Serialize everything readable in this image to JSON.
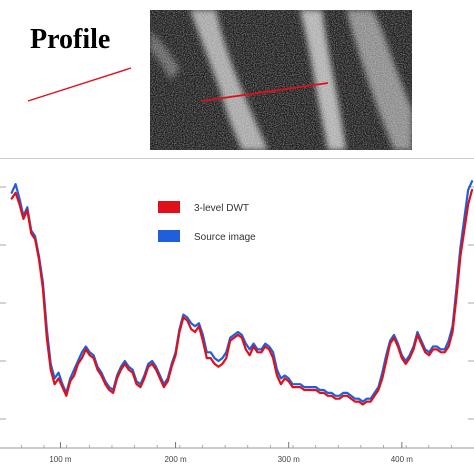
{
  "figure": {
    "title": "Profile",
    "image_panel": "source-image-with-profile-line"
  },
  "chart_data": {
    "type": "line",
    "x_unit": "m",
    "xlim": [
      -12,
      474
    ],
    "ylim": [
      0,
      100
    ],
    "x_ticks": [
      {
        "value": 50,
        "label": "100 m"
      },
      {
        "value": 168,
        "label": "200 m"
      },
      {
        "value": 284,
        "label": "300 m"
      },
      {
        "value": 400,
        "label": "400 m"
      }
    ],
    "legend_position": "top-center",
    "grid": "horizontal-tick-marks",
    "series": [
      {
        "name": "3-level DWT",
        "color": "#e0101a",
        "x": [
          0,
          4,
          8,
          12,
          16,
          20,
          24,
          28,
          32,
          36,
          40,
          44,
          48,
          52,
          56,
          60,
          64,
          68,
          72,
          76,
          80,
          84,
          88,
          92,
          96,
          100,
          104,
          108,
          112,
          116,
          120,
          124,
          128,
          132,
          136,
          140,
          144,
          148,
          152,
          156,
          160,
          164,
          168,
          172,
          176,
          180,
          184,
          188,
          192,
          196,
          200,
          204,
          208,
          212,
          216,
          220,
          224,
          228,
          232,
          236,
          240,
          244,
          248,
          252,
          256,
          260,
          264,
          268,
          272,
          276,
          280,
          284,
          288,
          292,
          296,
          300,
          304,
          308,
          312,
          316,
          320,
          324,
          328,
          332,
          336,
          340,
          344,
          348,
          352,
          356,
          360,
          364,
          368,
          372,
          376,
          380,
          384,
          388,
          392,
          396,
          400,
          404,
          408,
          412,
          416,
          420,
          424,
          428,
          432,
          436,
          440,
          444,
          448,
          452,
          456,
          460,
          464,
          468,
          472
        ],
        "y": [
          86,
          88,
          84,
          79,
          82,
          74,
          72,
          65,
          55,
          38,
          27,
          22,
          24,
          21,
          18,
          23,
          25,
          29,
          31,
          34,
          32,
          31,
          27,
          25,
          22,
          20,
          19,
          24,
          27,
          29,
          27,
          26,
          22,
          21,
          24,
          28,
          29,
          27,
          24,
          21,
          23,
          28,
          32,
          40,
          45,
          44,
          41,
          40,
          42,
          37,
          31,
          31,
          29,
          28,
          29,
          31,
          37,
          38,
          39,
          38,
          34,
          32,
          35,
          33,
          33,
          35,
          34,
          31,
          25,
          22,
          24,
          23,
          21,
          21,
          21,
          20,
          20,
          20,
          20,
          19,
          19,
          18,
          18,
          17,
          17,
          18,
          18,
          17,
          16,
          16,
          15,
          16,
          16,
          18,
          20,
          24,
          30,
          36,
          38,
          35,
          31,
          29,
          31,
          34,
          39,
          36,
          33,
          32,
          34,
          34,
          33,
          33,
          35,
          40,
          52,
          66,
          75,
          84,
          89
        ]
      },
      {
        "name": "Source image",
        "color": "#1f5fdc",
        "x": [
          0,
          4,
          8,
          12,
          16,
          20,
          24,
          28,
          32,
          36,
          40,
          44,
          48,
          52,
          56,
          60,
          64,
          68,
          72,
          76,
          80,
          84,
          88,
          92,
          96,
          100,
          104,
          108,
          112,
          116,
          120,
          124,
          128,
          132,
          136,
          140,
          144,
          148,
          152,
          156,
          160,
          164,
          168,
          172,
          176,
          180,
          184,
          188,
          192,
          196,
          200,
          204,
          208,
          212,
          216,
          220,
          224,
          228,
          232,
          236,
          240,
          244,
          248,
          252,
          256,
          260,
          264,
          268,
          272,
          276,
          280,
          284,
          288,
          292,
          296,
          300,
          304,
          308,
          312,
          316,
          320,
          324,
          328,
          332,
          336,
          340,
          344,
          348,
          352,
          356,
          360,
          364,
          368,
          372,
          376,
          380,
          384,
          388,
          392,
          396,
          400,
          404,
          408,
          412,
          416,
          420,
          424,
          428,
          432,
          436,
          440,
          444,
          448,
          452,
          456,
          460,
          464,
          468,
          472
        ],
        "y": [
          88,
          91,
          86,
          80,
          83,
          75,
          73,
          66,
          57,
          41,
          29,
          24,
          26,
          22,
          19,
          24,
          27,
          30,
          33,
          35,
          33,
          32,
          28,
          26,
          23,
          21,
          20,
          25,
          28,
          30,
          28,
          27,
          23,
          22,
          25,
          29,
          30,
          28,
          25,
          22,
          24,
          29,
          33,
          41,
          46,
          45,
          43,
          42,
          43,
          39,
          33,
          33,
          31,
          30,
          31,
          33,
          38,
          39,
          40,
          39,
          36,
          34,
          36,
          34,
          34,
          36,
          35,
          33,
          27,
          24,
          25,
          24,
          22,
          22,
          22,
          21,
          21,
          21,
          21,
          20,
          20,
          19,
          19,
          18,
          18,
          19,
          19,
          18,
          17,
          17,
          16,
          17,
          17,
          19,
          21,
          26,
          32,
          37,
          39,
          36,
          32,
          30,
          32,
          35,
          40,
          37,
          34,
          33,
          35,
          35,
          34,
          34,
          37,
          42,
          55,
          69,
          79,
          89,
          92
        ]
      }
    ]
  }
}
